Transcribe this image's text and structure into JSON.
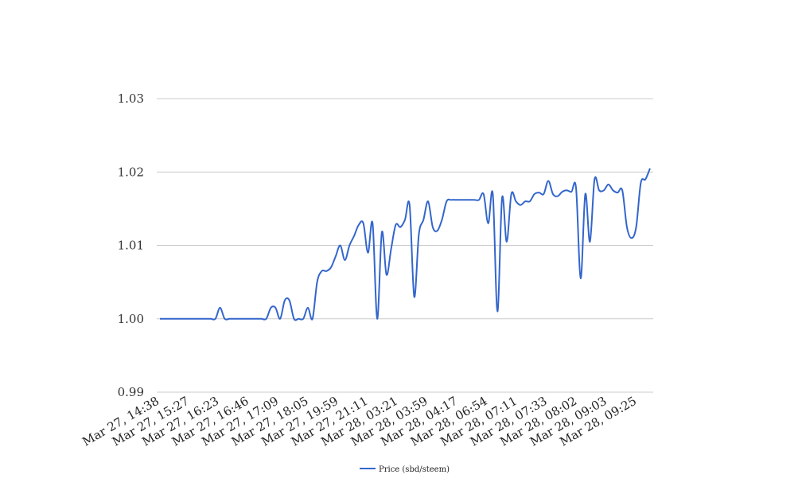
{
  "chart_data": {
    "type": "line",
    "title": "",
    "xlabel": "",
    "ylabel": "",
    "ylim": [
      0.99,
      1.03
    ],
    "yticks": [
      "0.99",
      "1.00",
      "1.01",
      "1.02",
      "1.03"
    ],
    "grid": true,
    "legend_position": "bottom",
    "colors": {
      "series": "#3366cc",
      "grid": "#cccccc"
    },
    "x_tick_labels": [
      "Mar 27, 14:38",
      "Mar 27, 15:27",
      "Mar 27, 16:23",
      "Mar 27, 16:46",
      "Mar 27, 17:09",
      "Mar 27, 18:05",
      "Mar 27, 19:59",
      "Mar 27, 21:11",
      "Mar 28, 03:21",
      "Mar 28, 03:59",
      "Mar 28, 04:17",
      "Mar 28, 06:54",
      "Mar 28, 07:11",
      "Mar 28, 07:33",
      "Mar 28, 08:02",
      "Mar 28, 09:03",
      "Mar 28, 09:25"
    ],
    "series": [
      {
        "name": "Price (sbd/steem)",
        "values": [
          1.0,
          1.0,
          1.0,
          1.0,
          1.0,
          1.0,
          1.0,
          1.0,
          1.0,
          1.0,
          1.0,
          1.0,
          1.0,
          1.0015,
          1.0,
          1.0,
          1.0,
          1.0,
          1.0,
          1.0,
          1.0,
          1.0,
          1.0,
          1.0,
          1.0015,
          1.0015,
          1.0,
          1.0025,
          1.0025,
          1.0,
          1.0,
          1.0,
          1.0015,
          1.0,
          1.005,
          1.0065,
          1.0065,
          1.007,
          1.0085,
          1.01,
          1.008,
          1.01,
          1.0113,
          1.0128,
          1.013,
          1.009,
          1.013,
          1.0,
          1.0118,
          1.006,
          1.0095,
          1.0128,
          1.0125,
          1.0135,
          1.0155,
          1.003,
          1.0115,
          1.0135,
          1.016,
          1.0125,
          1.012,
          1.0135,
          1.016,
          1.0162,
          1.0162,
          1.0162,
          1.0162,
          1.0162,
          1.0162,
          1.0162,
          1.017,
          1.013,
          1.017,
          1.001,
          1.0165,
          1.0105,
          1.017,
          1.016,
          1.0155,
          1.016,
          1.016,
          1.017,
          1.0172,
          1.017,
          1.0188,
          1.017,
          1.0167,
          1.0173,
          1.0175,
          1.0173,
          1.0178,
          1.0055,
          1.017,
          1.0105,
          1.019,
          1.0175,
          1.0175,
          1.0183,
          1.0175,
          1.0172,
          1.0175,
          1.0125,
          1.011,
          1.0125,
          1.0185,
          1.019,
          1.0205
        ]
      }
    ]
  }
}
